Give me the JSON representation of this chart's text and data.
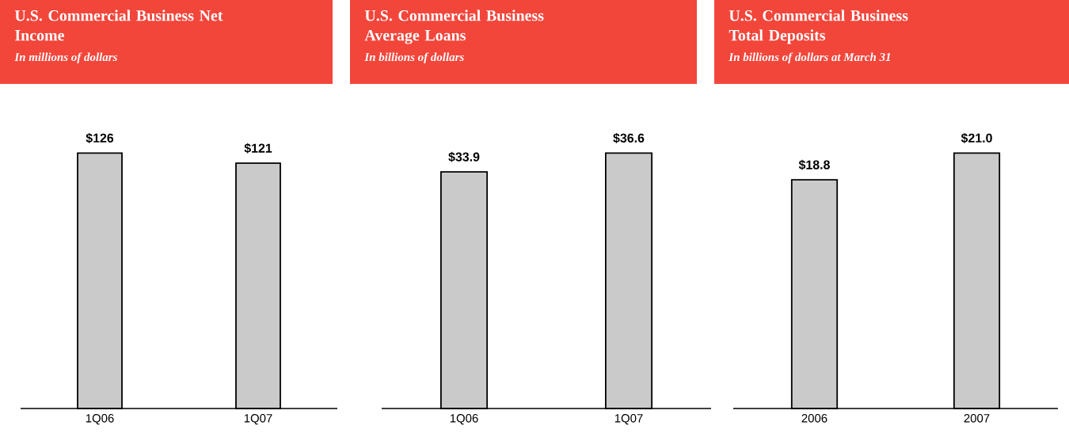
{
  "chart_data": [
    {
      "type": "bar",
      "title": "U.S. Commercial Business Net Income",
      "subtitle": "In millions of dollars",
      "categories": [
        "1Q06",
        "1Q07"
      ],
      "values": [
        126,
        121
      ],
      "value_labels": [
        "$126",
        "$121"
      ],
      "color": "#c9cac9"
    },
    {
      "type": "bar",
      "title": "U.S. Commercial Business Average Loans",
      "subtitle": "In billions of dollars",
      "categories": [
        "1Q06",
        "1Q07"
      ],
      "values": [
        33.9,
        36.6
      ],
      "value_labels": [
        "$33.9",
        "$36.6"
      ],
      "color": "#c9cac9"
    },
    {
      "type": "bar",
      "title": "U.S. Commercial Business Total Deposits",
      "subtitle": "In billions of dollars at March 31",
      "categories": [
        "2006",
        "2007"
      ],
      "values": [
        18.8,
        21.0
      ],
      "value_labels": [
        "$18.8",
        "$21.0"
      ],
      "color": "#c9cac9"
    }
  ]
}
